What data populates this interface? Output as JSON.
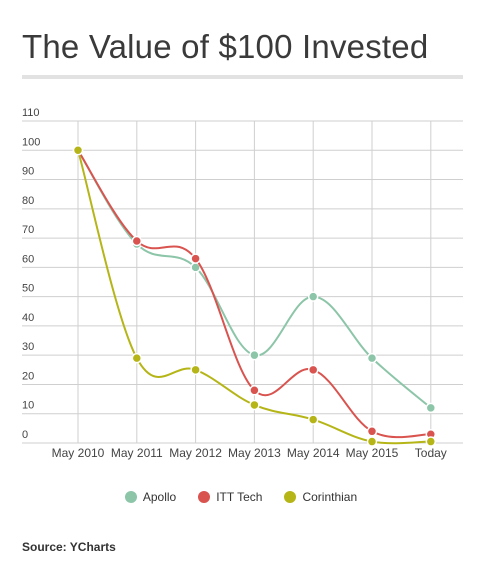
{
  "title": "The Value of $100 Invested",
  "source": "Source: YCharts",
  "chart_data": {
    "type": "line",
    "title": "The Value of $100 Invested",
    "xlabel": "",
    "ylabel": "",
    "categories": [
      "May 2010",
      "May 2011",
      "May 2012",
      "May 2013",
      "May 2014",
      "May 2015",
      "Today"
    ],
    "ylim": [
      0,
      110
    ],
    "yticks": [
      0,
      10,
      20,
      30,
      40,
      50,
      60,
      70,
      80,
      90,
      100,
      110
    ],
    "grid": true,
    "legend_position": "bottom",
    "series": [
      {
        "name": "Apollo",
        "color": "#8cc5a8",
        "values": [
          100,
          68,
          60,
          30,
          50,
          29,
          12
        ]
      },
      {
        "name": "ITT Tech",
        "color": "#d9534f",
        "values": [
          100,
          69,
          63,
          18,
          25,
          4,
          3
        ]
      },
      {
        "name": "Corinthian",
        "color": "#b5b518",
        "values": [
          100,
          29,
          25,
          13,
          8,
          0.5,
          0.5
        ]
      }
    ]
  }
}
